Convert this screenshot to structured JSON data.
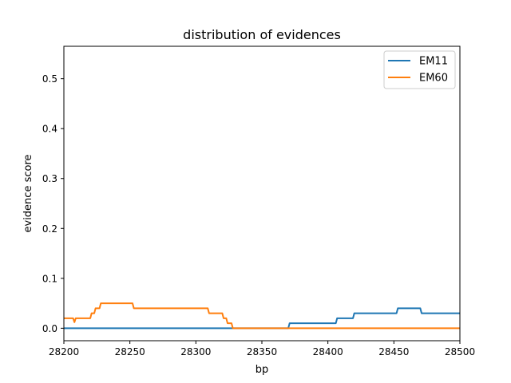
{
  "chart_data": {
    "type": "line",
    "title": "distribution of evidences",
    "xlabel": "bp",
    "ylabel": "evidence score",
    "xlim": [
      28200,
      28500
    ],
    "ylim": [
      -0.025,
      0.565
    ],
    "xticks": [
      28200,
      28250,
      28300,
      28350,
      28400,
      28450,
      28500
    ],
    "yticks": [
      0.0,
      0.1,
      0.2,
      0.3,
      0.4,
      0.5
    ],
    "xtick_labels": [
      "28200",
      "28250",
      "28300",
      "28350",
      "28400",
      "28450",
      "28500"
    ],
    "ytick_labels": [
      "0.0",
      "0.1",
      "0.2",
      "0.3",
      "0.4",
      "0.5"
    ],
    "legend_position": "top-right",
    "series": [
      {
        "name": "EM11",
        "color": "#1f77b4",
        "points": [
          [
            28200,
            0.0
          ],
          [
            28370,
            0.0
          ],
          [
            28371,
            0.01
          ],
          [
            28406,
            0.01
          ],
          [
            28407,
            0.02
          ],
          [
            28419,
            0.02
          ],
          [
            28420,
            0.03
          ],
          [
            28452,
            0.03
          ],
          [
            28453,
            0.04
          ],
          [
            28470,
            0.04
          ],
          [
            28471,
            0.03
          ],
          [
            28500,
            0.03
          ]
        ]
      },
      {
        "name": "EM60",
        "color": "#ff7f0e",
        "points": [
          [
            28200,
            0.02
          ],
          [
            28207,
            0.02
          ],
          [
            28208,
            0.012
          ],
          [
            28209,
            0.02
          ],
          [
            28220,
            0.02
          ],
          [
            28221,
            0.03
          ],
          [
            28223,
            0.03
          ],
          [
            28224,
            0.04
          ],
          [
            28227,
            0.04
          ],
          [
            28228,
            0.05
          ],
          [
            28252,
            0.05
          ],
          [
            28253,
            0.04
          ],
          [
            28309,
            0.04
          ],
          [
            28310,
            0.03
          ],
          [
            28320,
            0.03
          ],
          [
            28321,
            0.02
          ],
          [
            28323,
            0.02
          ],
          [
            28324,
            0.01
          ],
          [
            28327,
            0.01
          ],
          [
            28328,
            0.0
          ],
          [
            28500,
            0.0
          ]
        ]
      }
    ]
  }
}
